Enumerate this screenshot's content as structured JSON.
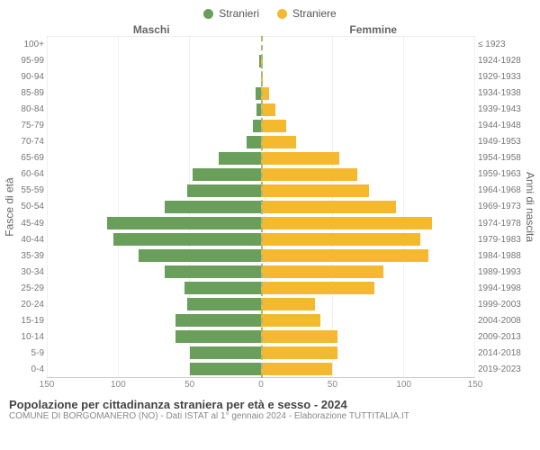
{
  "chart": {
    "type": "population-pyramid",
    "legend": {
      "male": {
        "label": "Stranieri",
        "color": "#6a9e5b"
      },
      "female": {
        "label": "Straniere",
        "color": "#f5b92f"
      }
    },
    "headers": {
      "male": "Maschi",
      "female": "Femmine"
    },
    "y_left_label": "Fasce di età",
    "y_right_label": "Anni di nascita",
    "x_max": 150,
    "x_ticks": [
      150,
      100,
      50,
      0,
      50,
      100,
      150
    ],
    "grid_color": "#f0f0f0",
    "centerline_color": "#a8b87e",
    "background": "#ffffff",
    "rows": [
      {
        "age": "100+",
        "birth": "≤ 1923",
        "m": 0,
        "f": 0
      },
      {
        "age": "95-99",
        "birth": "1924-1928",
        "m": 1,
        "f": 1
      },
      {
        "age": "90-94",
        "birth": "1929-1933",
        "m": 0,
        "f": 1
      },
      {
        "age": "85-89",
        "birth": "1934-1938",
        "m": 4,
        "f": 6
      },
      {
        "age": "80-84",
        "birth": "1939-1943",
        "m": 3,
        "f": 10
      },
      {
        "age": "75-79",
        "birth": "1944-1948",
        "m": 6,
        "f": 18
      },
      {
        "age": "70-74",
        "birth": "1949-1953",
        "m": 10,
        "f": 25
      },
      {
        "age": "65-69",
        "birth": "1954-1958",
        "m": 30,
        "f": 55
      },
      {
        "age": "60-64",
        "birth": "1959-1963",
        "m": 48,
        "f": 68
      },
      {
        "age": "55-59",
        "birth": "1964-1968",
        "m": 52,
        "f": 76
      },
      {
        "age": "50-54",
        "birth": "1969-1973",
        "m": 68,
        "f": 95
      },
      {
        "age": "45-49",
        "birth": "1974-1978",
        "m": 108,
        "f": 120
      },
      {
        "age": "40-44",
        "birth": "1979-1983",
        "m": 104,
        "f": 112
      },
      {
        "age": "35-39",
        "birth": "1984-1988",
        "m": 86,
        "f": 118
      },
      {
        "age": "30-34",
        "birth": "1989-1993",
        "m": 68,
        "f": 86
      },
      {
        "age": "25-29",
        "birth": "1994-1998",
        "m": 54,
        "f": 80
      },
      {
        "age": "20-24",
        "birth": "1999-2003",
        "m": 52,
        "f": 38
      },
      {
        "age": "15-19",
        "birth": "2004-2008",
        "m": 60,
        "f": 42
      },
      {
        "age": "10-14",
        "birth": "2009-2013",
        "m": 60,
        "f": 54
      },
      {
        "age": "5-9",
        "birth": "2014-2018",
        "m": 50,
        "f": 54
      },
      {
        "age": "0-4",
        "birth": "2019-2023",
        "m": 50,
        "f": 50
      }
    ]
  },
  "footer": {
    "title": "Popolazione per cittadinanza straniera per età e sesso - 2024",
    "subtitle": "COMUNE DI BORGOMANERO (NO) - Dati ISTAT al 1° gennaio 2024 - Elaborazione TUTTITALIA.IT"
  }
}
